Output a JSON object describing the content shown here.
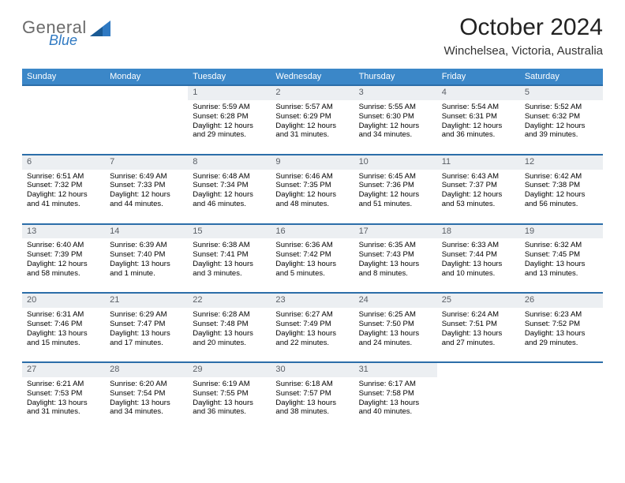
{
  "brand": {
    "line1": "General",
    "line2": "Blue"
  },
  "title": "October 2024",
  "subtitle": "Winchelsea, Victoria, Australia",
  "colors": {
    "header_bg": "#3b87c8",
    "header_text": "#ffffff",
    "daynum_bg": "#eceff2",
    "daynum_text": "#5a5f66",
    "row_border": "#2c6ea9",
    "logo_gray": "#6b6b6b",
    "logo_blue": "#2f79c2"
  },
  "dayNames": [
    "Sunday",
    "Monday",
    "Tuesday",
    "Wednesday",
    "Thursday",
    "Friday",
    "Saturday"
  ],
  "weeks": [
    [
      null,
      null,
      {
        "n": "1",
        "sr": "5:59 AM",
        "ss": "6:28 PM",
        "dl": "12 hours and 29 minutes."
      },
      {
        "n": "2",
        "sr": "5:57 AM",
        "ss": "6:29 PM",
        "dl": "12 hours and 31 minutes."
      },
      {
        "n": "3",
        "sr": "5:55 AM",
        "ss": "6:30 PM",
        "dl": "12 hours and 34 minutes."
      },
      {
        "n": "4",
        "sr": "5:54 AM",
        "ss": "6:31 PM",
        "dl": "12 hours and 36 minutes."
      },
      {
        "n": "5",
        "sr": "5:52 AM",
        "ss": "6:32 PM",
        "dl": "12 hours and 39 minutes."
      }
    ],
    [
      {
        "n": "6",
        "sr": "6:51 AM",
        "ss": "7:32 PM",
        "dl": "12 hours and 41 minutes."
      },
      {
        "n": "7",
        "sr": "6:49 AM",
        "ss": "7:33 PM",
        "dl": "12 hours and 44 minutes."
      },
      {
        "n": "8",
        "sr": "6:48 AM",
        "ss": "7:34 PM",
        "dl": "12 hours and 46 minutes."
      },
      {
        "n": "9",
        "sr": "6:46 AM",
        "ss": "7:35 PM",
        "dl": "12 hours and 48 minutes."
      },
      {
        "n": "10",
        "sr": "6:45 AM",
        "ss": "7:36 PM",
        "dl": "12 hours and 51 minutes."
      },
      {
        "n": "11",
        "sr": "6:43 AM",
        "ss": "7:37 PM",
        "dl": "12 hours and 53 minutes."
      },
      {
        "n": "12",
        "sr": "6:42 AM",
        "ss": "7:38 PM",
        "dl": "12 hours and 56 minutes."
      }
    ],
    [
      {
        "n": "13",
        "sr": "6:40 AM",
        "ss": "7:39 PM",
        "dl": "12 hours and 58 minutes."
      },
      {
        "n": "14",
        "sr": "6:39 AM",
        "ss": "7:40 PM",
        "dl": "13 hours and 1 minute."
      },
      {
        "n": "15",
        "sr": "6:38 AM",
        "ss": "7:41 PM",
        "dl": "13 hours and 3 minutes."
      },
      {
        "n": "16",
        "sr": "6:36 AM",
        "ss": "7:42 PM",
        "dl": "13 hours and 5 minutes."
      },
      {
        "n": "17",
        "sr": "6:35 AM",
        "ss": "7:43 PM",
        "dl": "13 hours and 8 minutes."
      },
      {
        "n": "18",
        "sr": "6:33 AM",
        "ss": "7:44 PM",
        "dl": "13 hours and 10 minutes."
      },
      {
        "n": "19",
        "sr": "6:32 AM",
        "ss": "7:45 PM",
        "dl": "13 hours and 13 minutes."
      }
    ],
    [
      {
        "n": "20",
        "sr": "6:31 AM",
        "ss": "7:46 PM",
        "dl": "13 hours and 15 minutes."
      },
      {
        "n": "21",
        "sr": "6:29 AM",
        "ss": "7:47 PM",
        "dl": "13 hours and 17 minutes."
      },
      {
        "n": "22",
        "sr": "6:28 AM",
        "ss": "7:48 PM",
        "dl": "13 hours and 20 minutes."
      },
      {
        "n": "23",
        "sr": "6:27 AM",
        "ss": "7:49 PM",
        "dl": "13 hours and 22 minutes."
      },
      {
        "n": "24",
        "sr": "6:25 AM",
        "ss": "7:50 PM",
        "dl": "13 hours and 24 minutes."
      },
      {
        "n": "25",
        "sr": "6:24 AM",
        "ss": "7:51 PM",
        "dl": "13 hours and 27 minutes."
      },
      {
        "n": "26",
        "sr": "6:23 AM",
        "ss": "7:52 PM",
        "dl": "13 hours and 29 minutes."
      }
    ],
    [
      {
        "n": "27",
        "sr": "6:21 AM",
        "ss": "7:53 PM",
        "dl": "13 hours and 31 minutes."
      },
      {
        "n": "28",
        "sr": "6:20 AM",
        "ss": "7:54 PM",
        "dl": "13 hours and 34 minutes."
      },
      {
        "n": "29",
        "sr": "6:19 AM",
        "ss": "7:55 PM",
        "dl": "13 hours and 36 minutes."
      },
      {
        "n": "30",
        "sr": "6:18 AM",
        "ss": "7:57 PM",
        "dl": "13 hours and 38 minutes."
      },
      {
        "n": "31",
        "sr": "6:17 AM",
        "ss": "7:58 PM",
        "dl": "13 hours and 40 minutes."
      },
      null,
      null
    ]
  ]
}
